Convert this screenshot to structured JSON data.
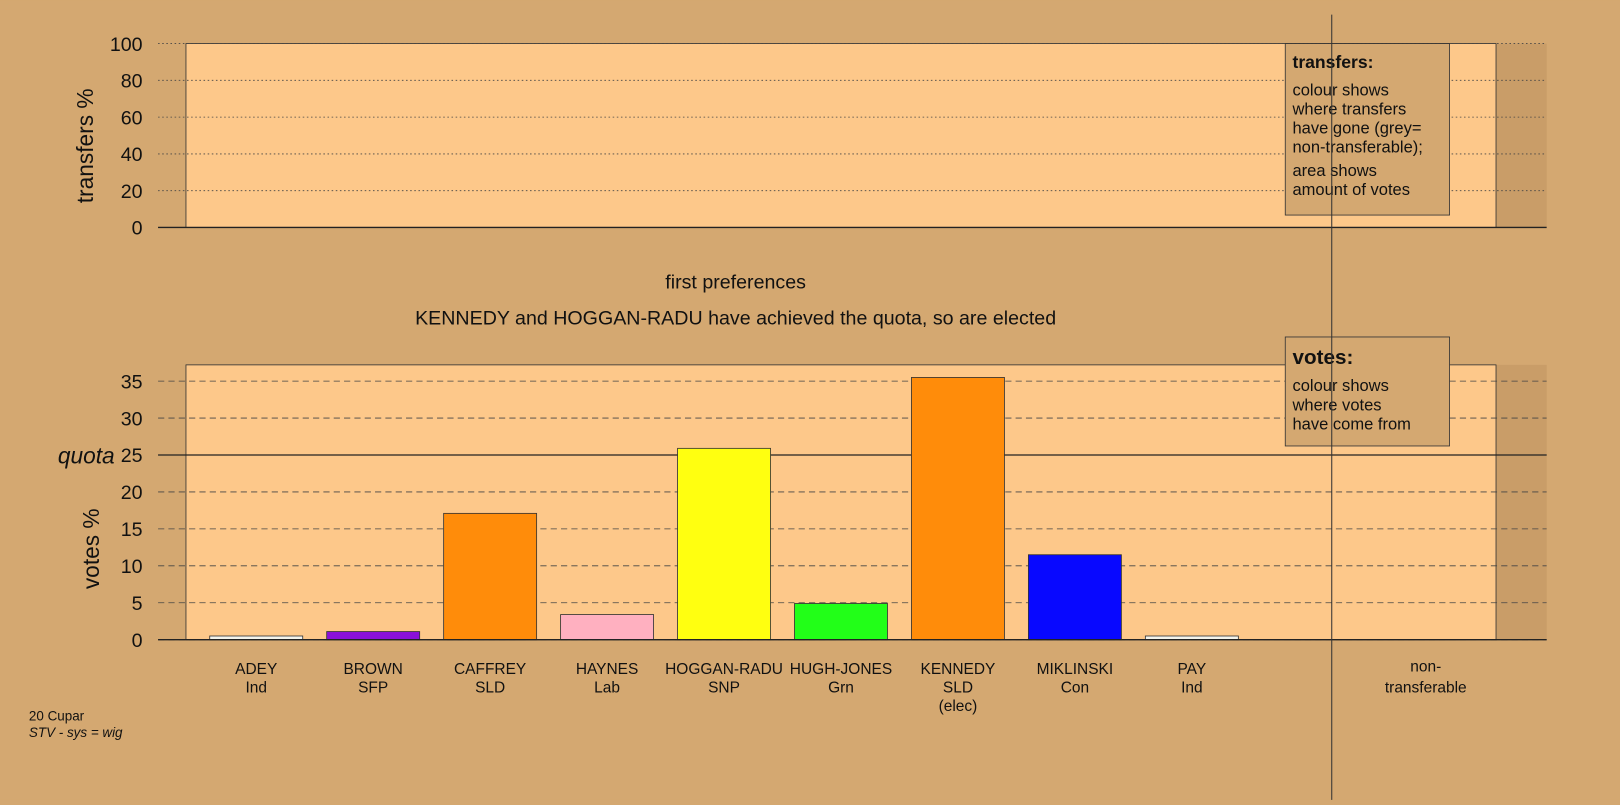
{
  "chart_data": [
    {
      "type": "transfers",
      "ylabel": "transfers %",
      "ylim": [
        0,
        100
      ],
      "yticks": [
        0,
        20,
        40,
        60,
        80,
        100
      ],
      "grid": true,
      "legend": {
        "title": "transfers:",
        "paragraphs": [
          [
            "colour shows",
            "where transfers",
            "have gone (grey=",
            "non-transferable);"
          ],
          [
            "area shows",
            "amount of votes"
          ]
        ]
      }
    },
    {
      "type": "bar",
      "title": "first preferences",
      "subtitle": "KENNEDY and HOGGAN-RADU have achieved the quota, so are elected",
      "ylabel": "votes %",
      "ylim": [
        0,
        37.2
      ],
      "yticks": [
        0,
        5,
        10,
        15,
        20,
        25,
        30,
        35
      ],
      "grid": true,
      "quota": {
        "value": 25,
        "label": "quota"
      },
      "categories": [
        "ADEY",
        "BROWN",
        "CAFFREY",
        "HAYNES",
        "HOGGAN-RADU",
        "HUGH-JONES",
        "KENNEDY",
        "MIKLINSKI",
        "PAY"
      ],
      "parties": [
        "Ind",
        "SFP",
        "SLD",
        "Lab",
        "SNP",
        "Grn",
        "SLD",
        "Con",
        "Ind"
      ],
      "notes": [
        null,
        null,
        null,
        null,
        null,
        null,
        "(elec)",
        null,
        null
      ],
      "values": [
        0.5,
        1.1,
        17.1,
        3.4,
        25.9,
        4.9,
        35.5,
        11.5,
        0.5
      ],
      "colors": [
        "#f4f4ec",
        "#8a10d8",
        "#ff8c0a",
        "#ffb0c0",
        "#ffff10",
        "#22ff18",
        "#ff8c0a",
        "#0808ff",
        "#f4f4ec"
      ],
      "extra_column": [
        "non-",
        "transferable"
      ],
      "legend": {
        "title": "votes:",
        "paragraphs": [
          [
            "colour shows",
            "where votes",
            "have come from"
          ]
        ]
      }
    }
  ],
  "footer": {
    "line1": "20 Cupar",
    "line2": "STV - sys = wig"
  }
}
